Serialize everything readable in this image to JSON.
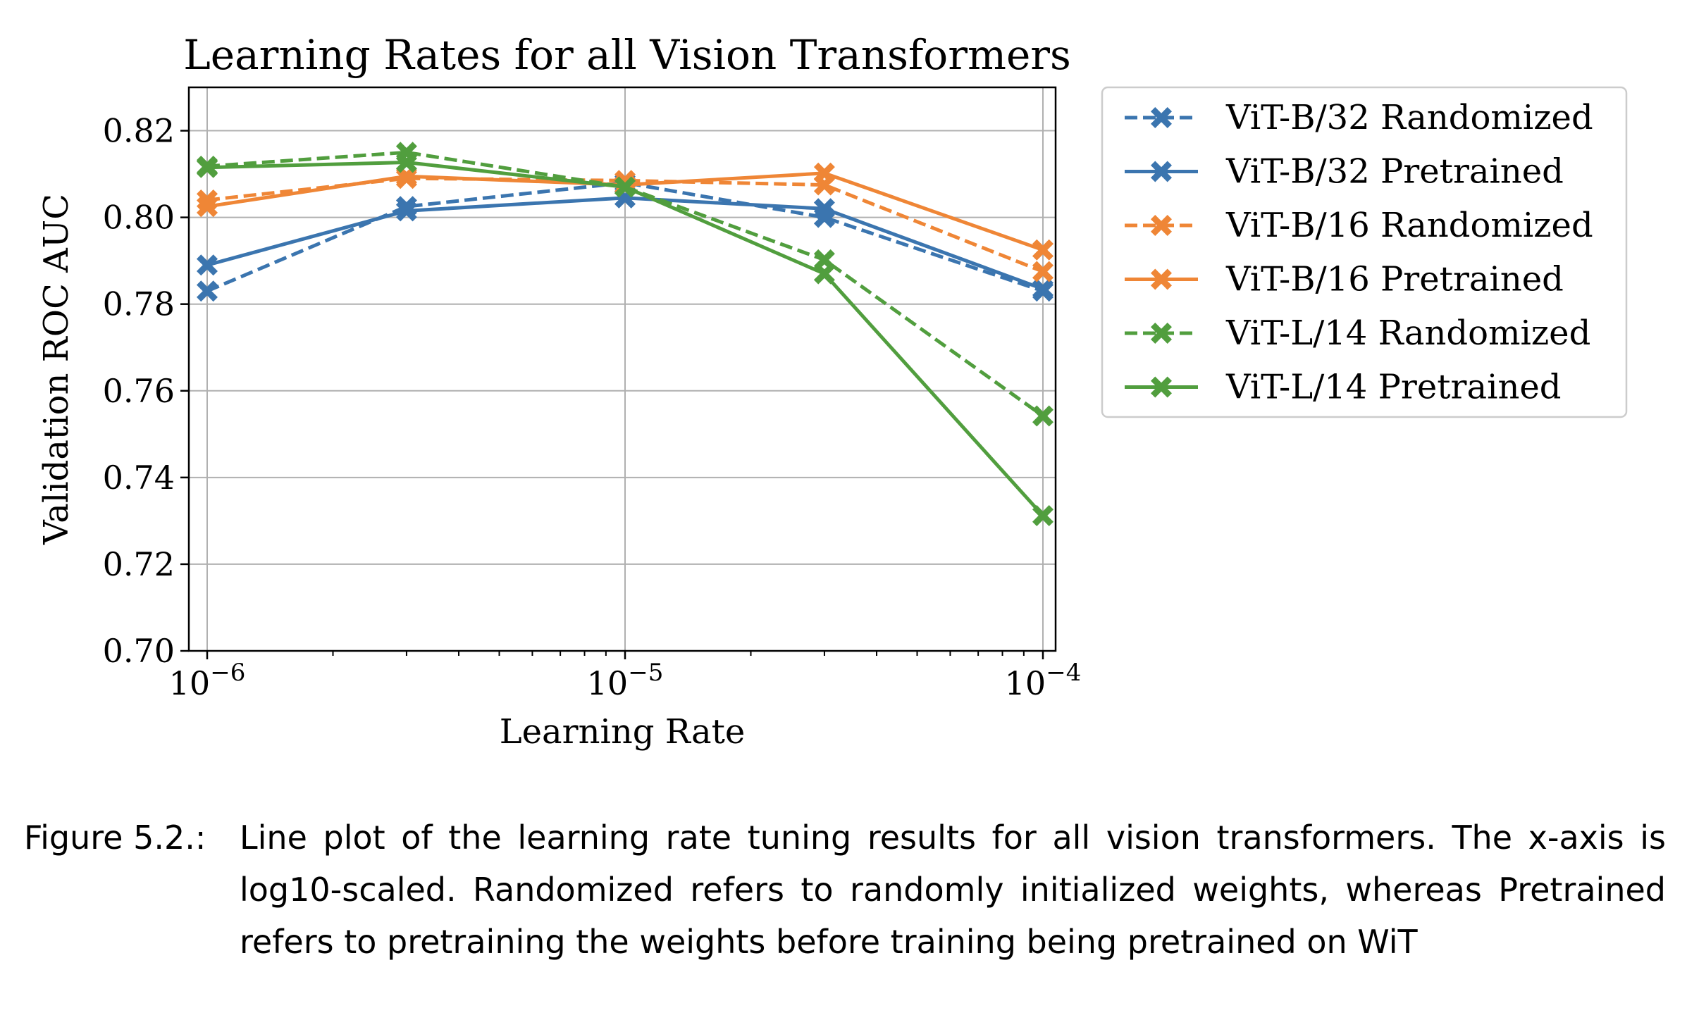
{
  "chart_data": {
    "type": "line",
    "title": "Learning Rates for all Vision Transformers",
    "xlabel": "Learning Rate",
    "ylabel": "Validation ROC AUC",
    "x_scale": "log10",
    "xlim": [
      1e-06,
      0.0001
    ],
    "ylim": [
      0.7,
      0.83
    ],
    "x_ticks": [
      {
        "value": 1e-06,
        "base": "10",
        "exp": "−6"
      },
      {
        "value": 1e-05,
        "base": "10",
        "exp": "−5"
      },
      {
        "value": 0.0001,
        "base": "10",
        "exp": "−4"
      }
    ],
    "y_ticks": [
      "0.70",
      "0.72",
      "0.74",
      "0.76",
      "0.78",
      "0.80",
      "0.82"
    ],
    "grid": true,
    "legend_position": "outside-right",
    "x": [
      1e-06,
      3e-06,
      1e-05,
      3e-05,
      0.0001
    ],
    "series": [
      {
        "name": "ViT-B/32 Randomized",
        "color": "#3b75af",
        "dashed": true,
        "values": [
          0.783,
          0.8025,
          0.808,
          0.8,
          0.783
        ]
      },
      {
        "name": "ViT-B/32 Pretrained",
        "color": "#3b75af",
        "dashed": false,
        "values": [
          0.789,
          0.8015,
          0.8045,
          0.802,
          0.7835
        ]
      },
      {
        "name": "ViT-B/16 Randomized",
        "color": "#ef8636",
        "dashed": true,
        "values": [
          0.804,
          0.809,
          0.8085,
          0.8075,
          0.7875
        ]
      },
      {
        "name": "ViT-B/16 Pretrained",
        "color": "#ef8636",
        "dashed": false,
        "values": [
          0.8025,
          0.8095,
          0.8075,
          0.8102,
          0.7925
        ]
      },
      {
        "name": "ViT-L/14 Randomized",
        "color": "#519e3e",
        "dashed": true,
        "values": [
          0.8118,
          0.815,
          0.807,
          0.7902,
          0.7542
        ]
      },
      {
        "name": "ViT-L/14 Pretrained",
        "color": "#519e3e",
        "dashed": false,
        "values": [
          0.8115,
          0.8127,
          0.807,
          0.787,
          0.7312
        ]
      }
    ]
  },
  "caption": {
    "label": "Figure 5.2.:",
    "text": "Line plot of the learning rate tuning results for all vision transformers. The x-axis is log10-scaled. Randomized refers to randomly initialized weights, whereas Pretrained refers to pretraining the weights before training being pretrained on WiT"
  }
}
